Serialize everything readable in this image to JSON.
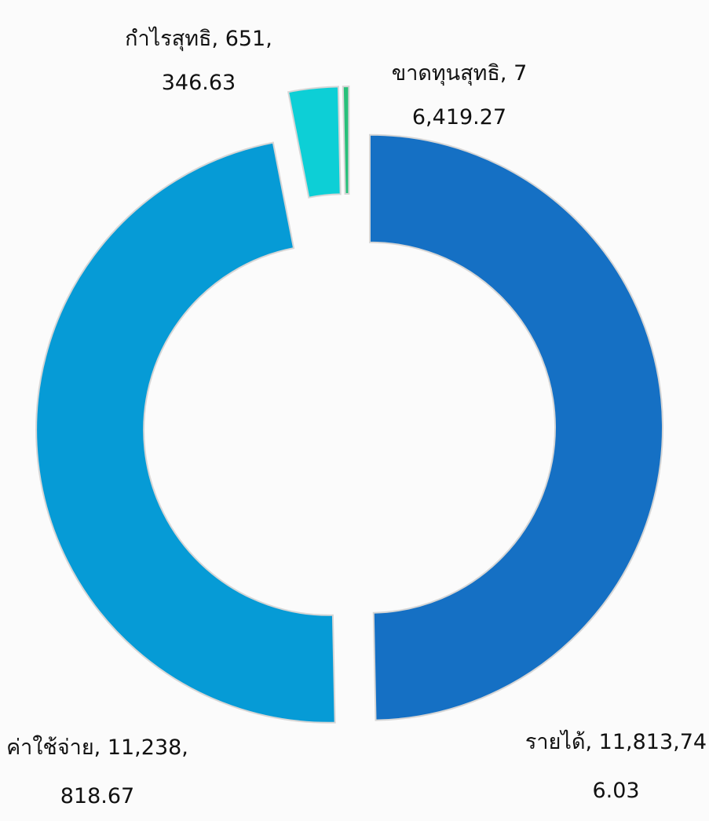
{
  "chart_data": {
    "type": "donut",
    "categories": [
      "รายได้",
      "ค่าใช้จ่าย",
      "กำไรสุทธิ",
      "ขาดทุนสุทธิ"
    ],
    "values": [
      11813746.03,
      11238818.67,
      651346.63,
      76419.27
    ],
    "value_labels": [
      ", 11,813,746.03",
      ", 11,238,818.67",
      ", 651,346.63",
      ", 76,419.27"
    ],
    "colors": [
      "#1570c4",
      "#069bd6",
      "#0dcfd6",
      "#27c07a"
    ]
  }
}
